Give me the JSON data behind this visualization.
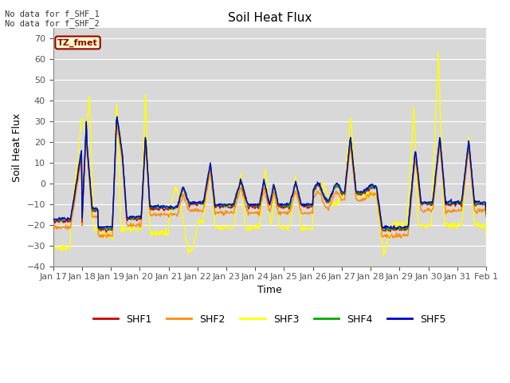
{
  "title": "Soil Heat Flux",
  "xlabel": "Time",
  "ylabel": "Soil Heat Flux",
  "ylim": [
    -40,
    75
  ],
  "yticks": [
    -40,
    -30,
    -20,
    -10,
    0,
    10,
    20,
    30,
    40,
    50,
    60,
    70
  ],
  "series_colors": {
    "SHF1": "#cc0000",
    "SHF2": "#ff8c00",
    "SHF3": "#ffff00",
    "SHF4": "#00aa00",
    "SHF5": "#0000cc"
  },
  "annotation_text": "No data for f_SHF_1\nNo data for f_SHF_2",
  "legend_label": "TZ_fmet",
  "background_color": "#ffffff",
  "plot_bg_color": "#d8d8d8",
  "n_points": 720,
  "x_start": 0,
  "x_end": 15,
  "xtick_labels": [
    "Jan 17",
    "Jan 18",
    "Jan 19",
    "Jan 20",
    "Jan 21",
    "Jan 22",
    "Jan 23",
    "Jan 24",
    "Jan 25",
    "Jan 26",
    "Jan 27",
    "Jan 28",
    "Jan 29",
    "Jan 30",
    "Jan 31",
    "Feb 1"
  ],
  "xtick_positions": [
    0,
    1,
    2,
    3,
    4,
    5,
    6,
    7,
    8,
    9,
    10,
    11,
    12,
    13,
    14,
    15
  ]
}
